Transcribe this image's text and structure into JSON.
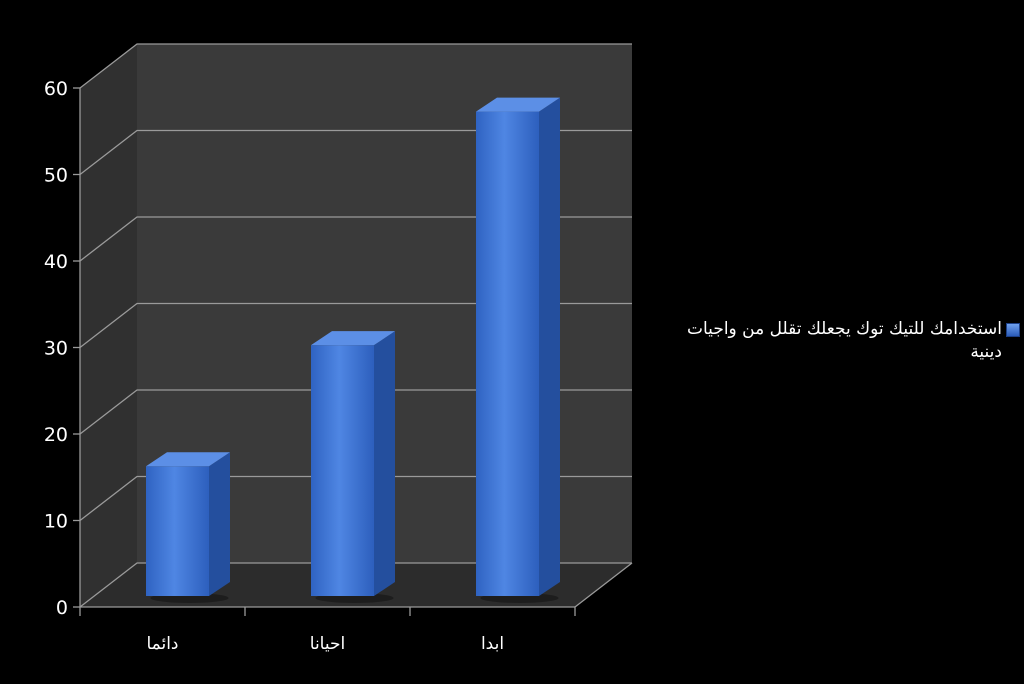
{
  "chart_data": {
    "type": "bar",
    "categories": [
      "دائما",
      "احيانا",
      "ابدا"
    ],
    "series": [
      {
        "name": "استخدامك للتيك توك يجعلك تقلل من واجيات دينية",
        "values": [
          15,
          29,
          56
        ]
      }
    ],
    "title": "",
    "xlabel": "",
    "ylabel": "",
    "ylim": [
      0,
      60
    ],
    "yticks": [
      "0",
      "10",
      "20",
      "30",
      "40",
      "50",
      "60"
    ],
    "grid": true,
    "legend_position": "right",
    "style": "3d-column",
    "colors": {
      "bar_front": "#3d74d6",
      "bar_side": "#244f9e",
      "bar_top": "#5c8fe6",
      "back_wall": "#3a3a3a",
      "side_wall": "#303030",
      "floor": "#2c2c2c",
      "grid": "#9a9a9a",
      "text": "#ffffff",
      "background": "#000000"
    }
  }
}
